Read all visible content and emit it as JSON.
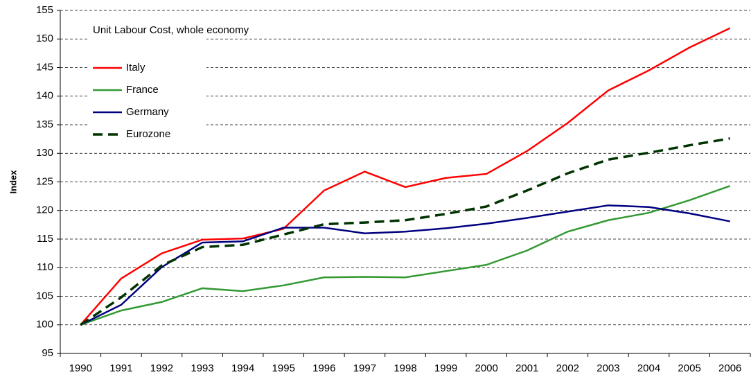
{
  "chart_data": {
    "type": "line",
    "annotation": "Unit Labour Cost, whole economy",
    "y_label": "Index",
    "categories": [
      "1990",
      "1991",
      "1992",
      "1993",
      "1994",
      "1995",
      "1996",
      "1997",
      "1998",
      "1999",
      "2000",
      "2001",
      "2002",
      "2003",
      "2004",
      "2005",
      "2006"
    ],
    "series": [
      {
        "name": "Italy",
        "color": "#ff0000",
        "line_style": "solid",
        "values": [
          100,
          108.1,
          112.5,
          114.9,
          115.1,
          116.8,
          123.5,
          126.8,
          124.1,
          125.7,
          126.4,
          130.4,
          135.3,
          141,
          144.5,
          148.5,
          151.9
        ]
      },
      {
        "name": "France",
        "color": "#339933",
        "line_style": "solid",
        "values": [
          100,
          102.5,
          104,
          106.4,
          105.9,
          106.9,
          108.3,
          108.4,
          108.3,
          109.4,
          110.5,
          113,
          116.3,
          118.3,
          119.6,
          121.8,
          124.3
        ]
      },
      {
        "name": "Germany",
        "color": "#000080",
        "line_style": "solid",
        "values": [
          100,
          103.5,
          110.1,
          114.4,
          114.6,
          117,
          117,
          116,
          116.3,
          116.9,
          117.7,
          118.7,
          119.8,
          120.9,
          120.6,
          119.5,
          118.1
        ]
      },
      {
        "name": "Eurozone",
        "color": "#003300",
        "line_style": "dashed",
        "values": [
          100,
          104.8,
          110.4,
          113.6,
          114,
          115.8,
          117.6,
          117.9,
          118.3,
          119.4,
          120.7,
          123.5,
          126.5,
          128.9,
          130.1,
          131.4,
          132.6
        ]
      }
    ],
    "ylim": [
      95,
      155
    ],
    "yticks": [
      95,
      100,
      105,
      110,
      115,
      120,
      125,
      130,
      135,
      140,
      145,
      150,
      155
    ],
    "grid": true,
    "legend": "upper left"
  }
}
